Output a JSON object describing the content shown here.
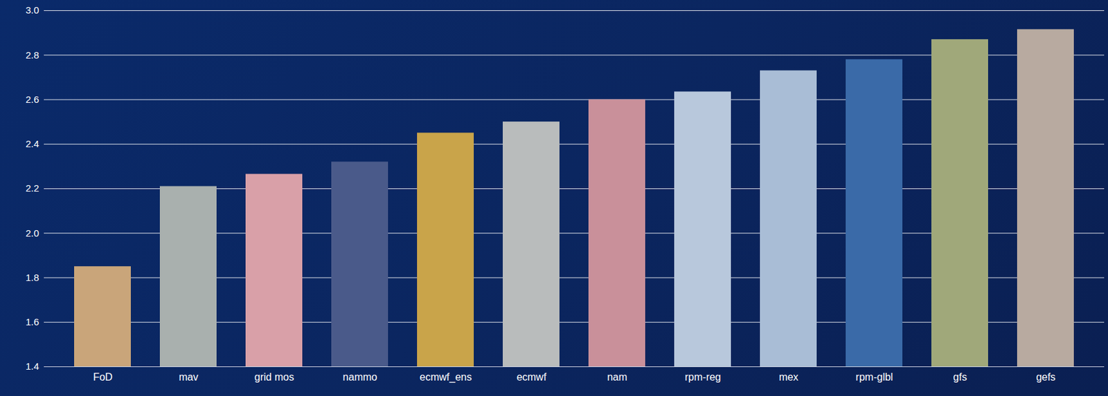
{
  "chart_data": {
    "type": "bar",
    "categories": [
      "FoD",
      "mav",
      "grid mos",
      "nammo",
      "ecmwf_ens",
      "ecmwf",
      "nam",
      "rpm-reg",
      "mex",
      "rpm-glbl",
      "gfs",
      "gefs"
    ],
    "values": [
      1.85,
      2.21,
      2.265,
      2.32,
      2.45,
      2.5,
      2.6,
      2.635,
      2.73,
      2.78,
      2.87,
      2.915
    ],
    "colors": [
      "#c9a57a",
      "#a9b0ae",
      "#d9a0a8",
      "#4a5a8a",
      "#c9a44a",
      "#b9bcbc",
      "#c9909a",
      "#b8c8dc",
      "#a9bdd6",
      "#3a6aa8",
      "#a0a87a",
      "#b8aaa0"
    ],
    "ylim": [
      1.4,
      3
    ],
    "yticks": [
      1.4,
      1.6,
      1.8,
      2,
      2.2,
      2.4,
      2.6,
      2.8,
      3
    ],
    "grid": true
  }
}
